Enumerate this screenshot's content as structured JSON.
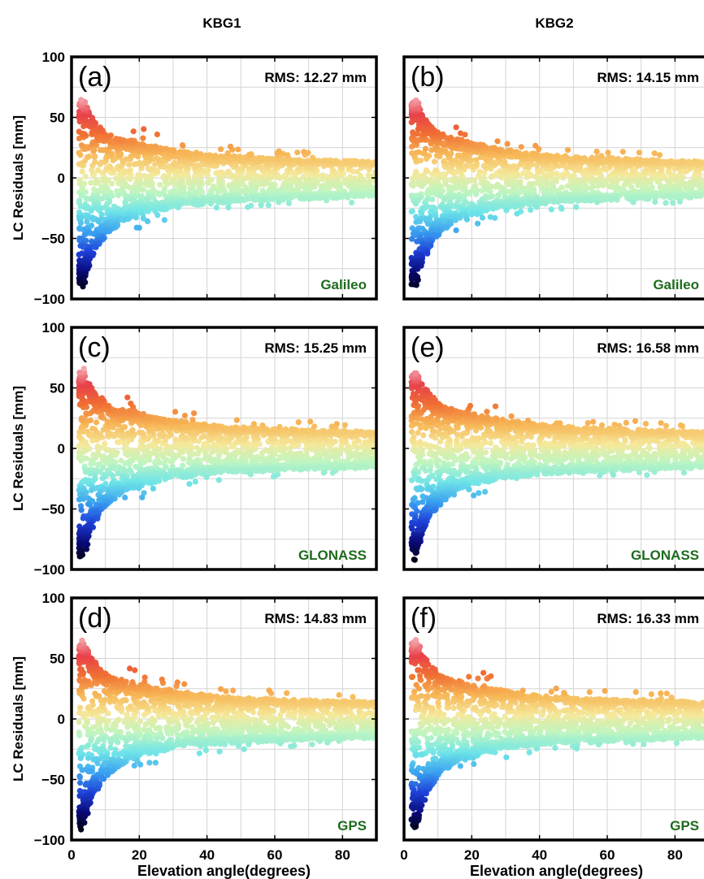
{
  "chart_data": {
    "type": "scatter",
    "columns": [
      "KBG1",
      "KBG2"
    ],
    "xlabel": "Elevation angle(degrees)",
    "ylabel": "LC Residuals [mm]",
    "xlim": [
      0,
      90
    ],
    "ylim": [
      -100,
      100
    ],
    "xticks": [
      0,
      20,
      40,
      60,
      80
    ],
    "yticks": [
      -100,
      -50,
      0,
      50,
      100
    ],
    "grid": true,
    "colormap": [
      "#000000",
      "#0a0a7a",
      "#1e40d8",
      "#3aa0f0",
      "#6fe4e8",
      "#bff5c0",
      "#f5e89a",
      "#f7b757",
      "#f07033",
      "#e8404a",
      "#f8c8cc"
    ],
    "label_color": "#1e6b1e",
    "envelope": {
      "elevation": [
        2,
        3,
        4,
        5,
        6,
        8,
        10,
        12,
        15,
        20,
        25,
        30,
        40,
        50,
        60,
        70,
        80,
        90
      ],
      "upper_mm": [
        62,
        68,
        66,
        58,
        52,
        45,
        40,
        36,
        33,
        30,
        27,
        24,
        20,
        18,
        17,
        16,
        15,
        14
      ],
      "lower_mm": [
        -88,
        -95,
        -90,
        -78,
        -68,
        -58,
        -50,
        -44,
        -38,
        -32,
        -28,
        -25,
        -22,
        -20,
        -19,
        -18,
        -17,
        -16
      ]
    },
    "panels": [
      {
        "id": "a",
        "tag": "(a)",
        "station": "KBG1",
        "system": "Galileo",
        "rms": "RMS: 12.27 mm"
      },
      {
        "id": "b",
        "tag": "(b)",
        "station": "KBG2",
        "system": "Galileo",
        "rms": "RMS: 14.15 mm"
      },
      {
        "id": "c",
        "tag": "(c)",
        "station": "KBG1",
        "system": "GLONASS",
        "rms": "RMS: 15.25 mm"
      },
      {
        "id": "e",
        "tag": "(e)",
        "station": "KBG2",
        "system": "GLONASS",
        "rms": "RMS: 16.58 mm"
      },
      {
        "id": "d",
        "tag": "(d)",
        "station": "KBG1",
        "system": "GPS",
        "rms": "RMS: 14.83 mm"
      },
      {
        "id": "f",
        "tag": "(f)",
        "station": "KBG2",
        "system": "GPS",
        "rms": "RMS: 16.33 mm"
      }
    ]
  }
}
